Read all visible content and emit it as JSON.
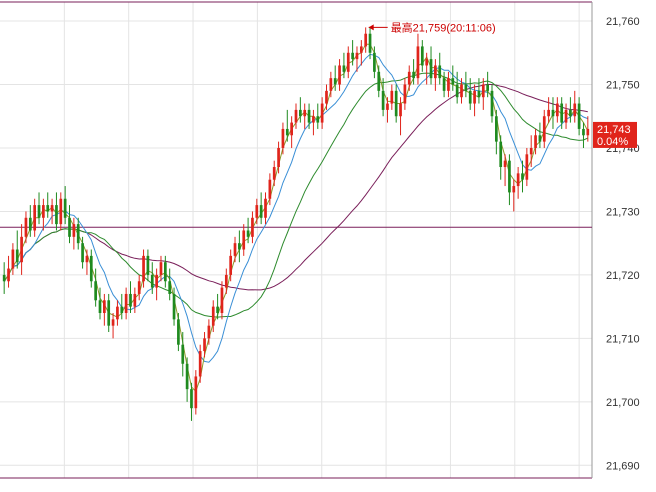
{
  "chart_data": {
    "type": "candlestick",
    "ylim": [
      21688,
      21763
    ],
    "y_ticks": [
      21690,
      21700,
      21710,
      21720,
      21730,
      21740,
      21750,
      21760
    ],
    "y_tick_labels": [
      "21,690",
      "21,700",
      "21,710",
      "21,720",
      "21,730",
      "21,740",
      "21,750",
      "21,760"
    ],
    "grid": true,
    "reference_line": 21727.5,
    "high_annotation": {
      "text": "最高21,759(20:11:06)",
      "value": 21759,
      "index": 83
    },
    "last_price": {
      "value": 21743,
      "label": "21,743",
      "change_label": "0.04%"
    },
    "candles": [
      [
        21720,
        21722,
        21717,
        21719
      ],
      [
        21719,
        21723,
        21718,
        21721
      ],
      [
        21721,
        21725,
        21720,
        21724
      ],
      [
        21724,
        21727,
        21721,
        21722
      ],
      [
        21722,
        21728,
        21720,
        21726
      ],
      [
        21726,
        21730,
        21725,
        21729
      ],
      [
        21729,
        21731,
        21726,
        21727
      ],
      [
        21727,
        21732,
        21726,
        21731
      ],
      [
        21731,
        21733,
        21728,
        21729
      ],
      [
        21729,
        21732,
        21727,
        21731
      ],
      [
        21731,
        21733,
        21729,
        21730
      ],
      [
        21730,
        21732,
        21728,
        21731
      ],
      [
        21731,
        21733,
        21727,
        21728
      ],
      [
        21728,
        21733,
        21727,
        21732
      ],
      [
        21732,
        21734,
        21728,
        21729
      ],
      [
        21729,
        21731,
        21725,
        21726
      ],
      [
        21726,
        21729,
        21724,
        21728
      ],
      [
        21728,
        21729,
        21724,
        21725
      ],
      [
        21725,
        21726,
        21721,
        21722
      ],
      [
        21722,
        21724,
        21720,
        21723
      ],
      [
        21723,
        21724,
        21718,
        21719
      ],
      [
        21719,
        21721,
        21715,
        21716
      ],
      [
        21716,
        21718,
        21713,
        21714
      ],
      [
        21714,
        21717,
        21712,
        21716
      ],
      [
        21716,
        21717,
        21711,
        21712
      ],
      [
        21712,
        21714,
        21710,
        21713
      ],
      [
        21713,
        21716,
        21712,
        21715
      ],
      [
        21715,
        21717,
        21713,
        21714
      ],
      [
        21714,
        21718,
        21713,
        21717
      ],
      [
        21717,
        21719,
        21714,
        21715
      ],
      [
        21715,
        21718,
        21714,
        21717
      ],
      [
        21717,
        21720,
        21716,
        21719
      ],
      [
        21719,
        21724,
        21718,
        21723
      ],
      [
        21723,
        21724,
        21719,
        21720
      ],
      [
        21720,
        21722,
        21717,
        21718
      ],
      [
        21718,
        21721,
        21716,
        21720
      ],
      [
        21720,
        21723,
        21719,
        21722
      ],
      [
        21722,
        21723,
        21718,
        21719
      ],
      [
        21719,
        21721,
        21716,
        21717
      ],
      [
        21717,
        21718,
        21712,
        21713
      ],
      [
        21713,
        21714,
        21708,
        21709
      ],
      [
        21709,
        21711,
        21704,
        21706
      ],
      [
        21706,
        21707,
        21700,
        21702
      ],
      [
        21702,
        21703,
        21697,
        21699
      ],
      [
        21699,
        21705,
        21698,
        21704
      ],
      [
        21704,
        21709,
        21703,
        21708
      ],
      [
        21708,
        21711,
        21707,
        21710
      ],
      [
        21710,
        21713,
        21709,
        21712
      ],
      [
        21712,
        21716,
        21711,
        21715
      ],
      [
        21715,
        21717,
        21713,
        21714
      ],
      [
        21714,
        21719,
        21713,
        21718
      ],
      [
        21718,
        21721,
        21717,
        21720
      ],
      [
        21720,
        21724,
        21719,
        21723
      ],
      [
        21723,
        21726,
        21722,
        21725
      ],
      [
        21725,
        21727,
        21722,
        21724
      ],
      [
        21724,
        21728,
        21723,
        21727
      ],
      [
        21727,
        21729,
        21725,
        21726
      ],
      [
        21726,
        21730,
        21725,
        21729
      ],
      [
        21729,
        21732,
        21728,
        21731
      ],
      [
        21731,
        21733,
        21728,
        21729
      ],
      [
        21729,
        21733,
        21728,
        21732
      ],
      [
        21732,
        21736,
        21731,
        21735
      ],
      [
        21735,
        21738,
        21734,
        21737
      ],
      [
        21737,
        21741,
        21736,
        21740
      ],
      [
        21740,
        21744,
        21739,
        21743
      ],
      [
        21743,
        21746,
        21741,
        21742
      ],
      [
        21742,
        21745,
        21740,
        21744
      ],
      [
        21744,
        21747,
        21743,
        21746
      ],
      [
        21746,
        21748,
        21744,
        21745
      ],
      [
        21745,
        21747,
        21743,
        21746
      ],
      [
        21746,
        21747,
        21743,
        21744
      ],
      [
        21744,
        21746,
        21742,
        21745
      ],
      [
        21745,
        21747,
        21743,
        21744
      ],
      [
        21744,
        21748,
        21743,
        21747
      ],
      [
        21747,
        21750,
        21746,
        21749
      ],
      [
        21749,
        21752,
        21748,
        21751
      ],
      [
        21751,
        21753,
        21749,
        21750
      ],
      [
        21750,
        21754,
        21749,
        21753
      ],
      [
        21753,
        21755,
        21751,
        21752
      ],
      [
        21752,
        21756,
        21751,
        21755
      ],
      [
        21755,
        21757,
        21753,
        21754
      ],
      [
        21754,
        21756,
        21752,
        21755
      ],
      [
        21755,
        21757,
        21753,
        21756
      ],
      [
        21756,
        21759,
        21755,
        21758
      ],
      [
        21758,
        21759,
        21754,
        21755
      ],
      [
        21755,
        21756,
        21751,
        21752
      ],
      [
        21752,
        21753,
        21748,
        21749
      ],
      [
        21749,
        21751,
        21745,
        21746
      ],
      [
        21746,
        21748,
        21744,
        21747
      ],
      [
        21747,
        21750,
        21746,
        21749
      ],
      [
        21749,
        21750,
        21744,
        21745
      ],
      [
        21745,
        21748,
        21742,
        21747
      ],
      [
        21747,
        21751,
        21746,
        21750
      ],
      [
        21750,
        21753,
        21749,
        21752
      ],
      [
        21752,
        21754,
        21750,
        21751
      ],
      [
        21751,
        21758,
        21750,
        21756
      ],
      [
        21756,
        21757,
        21752,
        21753
      ],
      [
        21753,
        21755,
        21750,
        21754
      ],
      [
        21754,
        21756,
        21750,
        21751
      ],
      [
        21751,
        21754,
        21749,
        21753
      ],
      [
        21753,
        21755,
        21750,
        21751
      ],
      [
        21751,
        21752,
        21748,
        21749
      ],
      [
        21749,
        21752,
        21748,
        21751
      ],
      [
        21751,
        21753,
        21749,
        21750
      ],
      [
        21750,
        21752,
        21747,
        21748
      ],
      [
        21748,
        21751,
        21747,
        21750
      ],
      [
        21750,
        21752,
        21748,
        21749
      ],
      [
        21749,
        21751,
        21746,
        21747
      ],
      [
        21747,
        21750,
        21745,
        21749
      ],
      [
        21749,
        21751,
        21747,
        21748
      ],
      [
        21748,
        21751,
        21746,
        21750
      ],
      [
        21750,
        21752,
        21748,
        21749
      ],
      [
        21749,
        21750,
        21744,
        21745
      ],
      [
        21745,
        21746,
        21739,
        21741
      ],
      [
        21741,
        21742,
        21735,
        21737
      ],
      [
        21737,
        21739,
        21734,
        21738
      ],
      [
        21738,
        21739,
        21731,
        21733
      ],
      [
        21733,
        21735,
        21730,
        21734
      ],
      [
        21734,
        21737,
        21732,
        21736
      ],
      [
        21736,
        21738,
        21733,
        21735
      ],
      [
        21735,
        21740,
        21734,
        21739
      ],
      [
        21739,
        21742,
        21737,
        21740
      ],
      [
        21740,
        21743,
        21739,
        21742
      ],
      [
        21742,
        21744,
        21740,
        21741
      ],
      [
        21741,
        21746,
        21740,
        21745
      ],
      [
        21745,
        21748,
        21744,
        21746
      ],
      [
        21746,
        21748,
        21743,
        21745
      ],
      [
        21745,
        21748,
        21744,
        21747
      ],
      [
        21747,
        21748,
        21743,
        21744
      ],
      [
        21744,
        21747,
        21743,
        21746
      ],
      [
        21746,
        21748,
        21744,
        21745
      ],
      [
        21745,
        21749,
        21744,
        21747
      ],
      [
        21747,
        21748,
        21742,
        21743
      ],
      [
        21743,
        21744,
        21740,
        21742
      ],
      [
        21742,
        21745,
        21741,
        21743
      ]
    ]
  }
}
